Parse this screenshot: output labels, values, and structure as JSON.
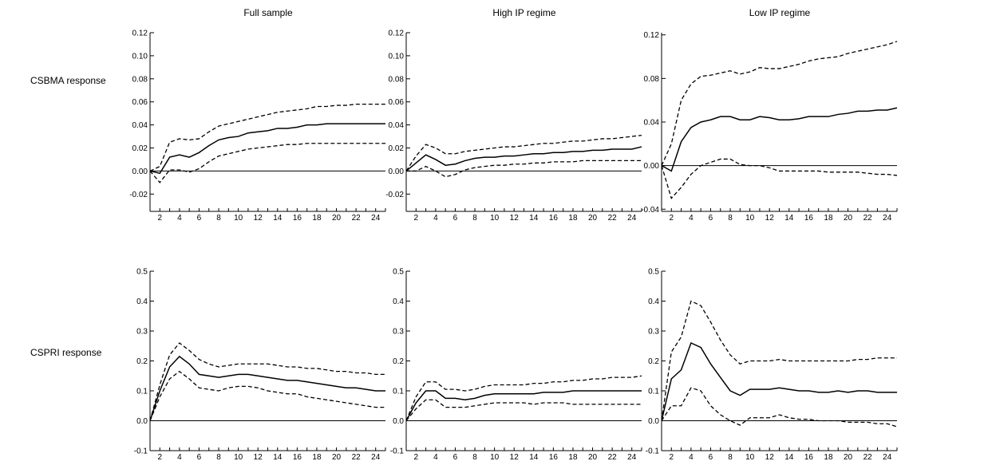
{
  "figure": {
    "column_titles": [
      "Full sample",
      "High IP regime",
      "Low IP regime"
    ],
    "row_labels": [
      "CSBMA response",
      "CSPRI response"
    ]
  },
  "chart_data": [
    {
      "type": "line",
      "row": 0,
      "col": 0,
      "xlim": [
        1,
        25
      ],
      "ylim": [
        -0.035,
        0.12
      ],
      "yticks": [
        -0.02,
        0.0,
        0.02,
        0.04,
        0.06,
        0.08,
        0.1,
        0.12
      ],
      "ytick_labels": [
        "-0.02",
        "0.00",
        "0.02",
        "0.04",
        "0.06",
        "0.08",
        "0.10",
        "0.12"
      ],
      "xticks": [
        2,
        4,
        6,
        8,
        10,
        12,
        14,
        16,
        18,
        20,
        22,
        24
      ],
      "xtick_labels": [
        "2",
        "4",
        "6",
        "8",
        "10",
        "12",
        "14",
        "16",
        "18",
        "20",
        "22",
        "24"
      ],
      "zero_line": true,
      "x": [
        1,
        2,
        3,
        4,
        5,
        6,
        7,
        8,
        9,
        10,
        11,
        12,
        13,
        14,
        15,
        16,
        17,
        18,
        19,
        20,
        21,
        22,
        23,
        24,
        25
      ],
      "series": [
        {
          "role": "response",
          "values": [
            0,
            -0.002,
            0.012,
            0.014,
            0.012,
            0.016,
            0.022,
            0.027,
            0.029,
            0.03,
            0.033,
            0.034,
            0.035,
            0.037,
            0.037,
            0.038,
            0.04,
            0.04,
            0.041,
            0.041,
            0.041,
            0.041,
            0.041,
            0.041,
            0.041
          ]
        },
        {
          "role": "upper",
          "values": [
            0,
            0.004,
            0.025,
            0.028,
            0.027,
            0.028,
            0.034,
            0.039,
            0.041,
            0.043,
            0.045,
            0.047,
            0.049,
            0.051,
            0.052,
            0.053,
            0.054,
            0.056,
            0.056,
            0.057,
            0.057,
            0.058,
            0.058,
            0.058,
            0.058
          ]
        },
        {
          "role": "lower",
          "values": [
            0,
            -0.01,
            0.001,
            0.001,
            -0.001,
            0.002,
            0.008,
            0.013,
            0.015,
            0.017,
            0.019,
            0.02,
            0.021,
            0.022,
            0.023,
            0.023,
            0.024,
            0.024,
            0.024,
            0.024,
            0.024,
            0.024,
            0.024,
            0.024,
            0.024
          ]
        }
      ]
    },
    {
      "type": "line",
      "row": 0,
      "col": 1,
      "xlim": [
        1,
        25
      ],
      "ylim": [
        -0.035,
        0.12
      ],
      "yticks": [
        -0.02,
        0.0,
        0.02,
        0.04,
        0.06,
        0.08,
        0.1,
        0.12
      ],
      "ytick_labels": [
        "-0.02",
        "0.00",
        "0.02",
        "0.04",
        "0.06",
        "0.08",
        "0.10",
        "0.12"
      ],
      "xticks": [
        2,
        4,
        6,
        8,
        10,
        12,
        14,
        16,
        18,
        20,
        22,
        24
      ],
      "xtick_labels": [
        "2",
        "4",
        "6",
        "8",
        "10",
        "12",
        "14",
        "16",
        "18",
        "20",
        "22",
        "24"
      ],
      "zero_line": true,
      "x": [
        1,
        2,
        3,
        4,
        5,
        6,
        7,
        8,
        9,
        10,
        11,
        12,
        13,
        14,
        15,
        16,
        17,
        18,
        19,
        20,
        21,
        22,
        23,
        24,
        25
      ],
      "series": [
        {
          "role": "response",
          "values": [
            0,
            0.007,
            0.014,
            0.01,
            0.005,
            0.006,
            0.009,
            0.011,
            0.012,
            0.012,
            0.013,
            0.013,
            0.014,
            0.015,
            0.015,
            0.016,
            0.016,
            0.017,
            0.017,
            0.018,
            0.018,
            0.019,
            0.019,
            0.019,
            0.021
          ]
        },
        {
          "role": "upper",
          "values": [
            0,
            0.013,
            0.023,
            0.02,
            0.015,
            0.015,
            0.017,
            0.018,
            0.019,
            0.02,
            0.021,
            0.021,
            0.022,
            0.023,
            0.024,
            0.024,
            0.025,
            0.026,
            0.026,
            0.027,
            0.028,
            0.028,
            0.029,
            0.03,
            0.031
          ]
        },
        {
          "role": "lower",
          "values": [
            0,
            0.0,
            0.004,
            0.0,
            -0.005,
            -0.003,
            0.001,
            0.003,
            0.004,
            0.005,
            0.005,
            0.006,
            0.006,
            0.007,
            0.007,
            0.008,
            0.008,
            0.008,
            0.009,
            0.009,
            0.009,
            0.009,
            0.009,
            0.009,
            0.009
          ]
        }
      ]
    },
    {
      "type": "line",
      "row": 0,
      "col": 2,
      "xlim": [
        1,
        25
      ],
      "ylim": [
        -0.042,
        0.122
      ],
      "yticks": [
        -0.04,
        0.0,
        0.04,
        0.08,
        0.12
      ],
      "ytick_labels": [
        "-0.04",
        "0.00",
        "0.04",
        "0.08",
        "0.12"
      ],
      "xticks": [
        2,
        4,
        6,
        8,
        10,
        12,
        14,
        16,
        18,
        20,
        22,
        24
      ],
      "xtick_labels": [
        "2",
        "4",
        "6",
        "8",
        "10",
        "12",
        "14",
        "16",
        "18",
        "20",
        "22",
        "24"
      ],
      "zero_line": true,
      "x": [
        1,
        2,
        3,
        4,
        5,
        6,
        7,
        8,
        9,
        10,
        11,
        12,
        13,
        14,
        15,
        16,
        17,
        18,
        19,
        20,
        21,
        22,
        23,
        24,
        25
      ],
      "series": [
        {
          "role": "response",
          "values": [
            0,
            -0.005,
            0.022,
            0.035,
            0.04,
            0.042,
            0.045,
            0.045,
            0.042,
            0.042,
            0.045,
            0.044,
            0.042,
            0.042,
            0.043,
            0.045,
            0.045,
            0.045,
            0.047,
            0.048,
            0.05,
            0.05,
            0.051,
            0.051,
            0.053
          ]
        },
        {
          "role": "upper",
          "values": [
            0,
            0.02,
            0.06,
            0.075,
            0.082,
            0.083,
            0.085,
            0.087,
            0.084,
            0.086,
            0.09,
            0.089,
            0.089,
            0.091,
            0.093,
            0.096,
            0.098,
            0.099,
            0.1,
            0.103,
            0.105,
            0.107,
            0.109,
            0.111,
            0.114
          ]
        },
        {
          "role": "lower",
          "values": [
            0,
            -0.03,
            -0.02,
            -0.008,
            0.0,
            0.003,
            0.006,
            0.006,
            0.001,
            0.0,
            0.0,
            -0.002,
            -0.005,
            -0.005,
            -0.005,
            -0.005,
            -0.005,
            -0.006,
            -0.006,
            -0.006,
            -0.006,
            -0.007,
            -0.008,
            -0.008,
            -0.009
          ]
        }
      ]
    },
    {
      "type": "line",
      "row": 1,
      "col": 0,
      "xlim": [
        1,
        25
      ],
      "ylim": [
        -0.1,
        0.5
      ],
      "yticks": [
        -0.1,
        0.0,
        0.1,
        0.2,
        0.3,
        0.4,
        0.5
      ],
      "ytick_labels": [
        "-0.1",
        "0.0",
        "0.1",
        "0.2",
        "0.3",
        "0.4",
        "0.5"
      ],
      "xticks": [
        2,
        4,
        6,
        8,
        10,
        12,
        14,
        16,
        18,
        20,
        22,
        24
      ],
      "xtick_labels": [
        "2",
        "4",
        "6",
        "8",
        "10",
        "12",
        "14",
        "16",
        "18",
        "20",
        "22",
        "24"
      ],
      "zero_line": true,
      "x": [
        1,
        2,
        3,
        4,
        5,
        6,
        7,
        8,
        9,
        10,
        11,
        12,
        13,
        14,
        15,
        16,
        17,
        18,
        19,
        20,
        21,
        22,
        23,
        24,
        25
      ],
      "series": [
        {
          "role": "response",
          "values": [
            0,
            0.1,
            0.18,
            0.215,
            0.19,
            0.155,
            0.15,
            0.145,
            0.15,
            0.155,
            0.155,
            0.15,
            0.145,
            0.14,
            0.135,
            0.135,
            0.13,
            0.125,
            0.12,
            0.115,
            0.11,
            0.11,
            0.105,
            0.1,
            0.1
          ]
        },
        {
          "role": "upper",
          "values": [
            0,
            0.12,
            0.22,
            0.26,
            0.235,
            0.205,
            0.19,
            0.18,
            0.185,
            0.19,
            0.19,
            0.19,
            0.19,
            0.185,
            0.18,
            0.18,
            0.175,
            0.175,
            0.17,
            0.165,
            0.165,
            0.16,
            0.16,
            0.155,
            0.155
          ]
        },
        {
          "role": "lower",
          "values": [
            0,
            0.08,
            0.14,
            0.165,
            0.14,
            0.11,
            0.105,
            0.1,
            0.11,
            0.115,
            0.115,
            0.11,
            0.1,
            0.095,
            0.09,
            0.09,
            0.08,
            0.075,
            0.07,
            0.065,
            0.06,
            0.055,
            0.05,
            0.045,
            0.045
          ]
        }
      ]
    },
    {
      "type": "line",
      "row": 1,
      "col": 1,
      "xlim": [
        1,
        25
      ],
      "ylim": [
        -0.1,
        0.5
      ],
      "yticks": [
        -0.1,
        0.0,
        0.1,
        0.2,
        0.3,
        0.4,
        0.5
      ],
      "ytick_labels": [
        "-0.1",
        "0.0",
        "0.1",
        "0.2",
        "0.3",
        "0.4",
        "0.5"
      ],
      "xticks": [
        2,
        4,
        6,
        8,
        10,
        12,
        14,
        16,
        18,
        20,
        22,
        24
      ],
      "xtick_labels": [
        "2",
        "4",
        "6",
        "8",
        "10",
        "12",
        "14",
        "16",
        "18",
        "20",
        "22",
        "24"
      ],
      "zero_line": true,
      "x": [
        1,
        2,
        3,
        4,
        5,
        6,
        7,
        8,
        9,
        10,
        11,
        12,
        13,
        14,
        15,
        16,
        17,
        18,
        19,
        20,
        21,
        22,
        23,
        24,
        25
      ],
      "series": [
        {
          "role": "response",
          "values": [
            0,
            0.06,
            0.1,
            0.1,
            0.075,
            0.075,
            0.07,
            0.075,
            0.085,
            0.09,
            0.09,
            0.09,
            0.09,
            0.09,
            0.095,
            0.095,
            0.095,
            0.1,
            0.1,
            0.1,
            0.1,
            0.1,
            0.1,
            0.1,
            0.1
          ]
        },
        {
          "role": "upper",
          "values": [
            0,
            0.08,
            0.13,
            0.13,
            0.105,
            0.105,
            0.1,
            0.105,
            0.115,
            0.12,
            0.12,
            0.12,
            0.12,
            0.125,
            0.125,
            0.13,
            0.13,
            0.135,
            0.135,
            0.14,
            0.14,
            0.145,
            0.145,
            0.145,
            0.15
          ]
        },
        {
          "role": "lower",
          "values": [
            0,
            0.04,
            0.07,
            0.07,
            0.045,
            0.045,
            0.045,
            0.05,
            0.055,
            0.06,
            0.06,
            0.06,
            0.06,
            0.055,
            0.06,
            0.06,
            0.06,
            0.055,
            0.055,
            0.055,
            0.055,
            0.055,
            0.055,
            0.055,
            0.055
          ]
        }
      ]
    },
    {
      "type": "line",
      "row": 1,
      "col": 2,
      "xlim": [
        1,
        25
      ],
      "ylim": [
        -0.1,
        0.5
      ],
      "yticks": [
        -0.1,
        0.0,
        0.1,
        0.2,
        0.3,
        0.4,
        0.5
      ],
      "ytick_labels": [
        "-0.1",
        "0.0",
        "0.1",
        "0.2",
        "0.3",
        "0.4",
        "0.5"
      ],
      "xticks": [
        2,
        4,
        6,
        8,
        10,
        12,
        14,
        16,
        18,
        20,
        22,
        24
      ],
      "xtick_labels": [
        "2",
        "4",
        "6",
        "8",
        "10",
        "12",
        "14",
        "16",
        "18",
        "20",
        "22",
        "24"
      ],
      "zero_line": true,
      "x": [
        1,
        2,
        3,
        4,
        5,
        6,
        7,
        8,
        9,
        10,
        11,
        12,
        13,
        14,
        15,
        16,
        17,
        18,
        19,
        20,
        21,
        22,
        23,
        24,
        25
      ],
      "series": [
        {
          "role": "response",
          "values": [
            0,
            0.14,
            0.17,
            0.26,
            0.245,
            0.19,
            0.145,
            0.1,
            0.085,
            0.105,
            0.105,
            0.105,
            0.11,
            0.105,
            0.1,
            0.1,
            0.095,
            0.095,
            0.1,
            0.095,
            0.1,
            0.1,
            0.095,
            0.095,
            0.095
          ]
        },
        {
          "role": "upper",
          "values": [
            0,
            0.23,
            0.28,
            0.4,
            0.385,
            0.33,
            0.27,
            0.22,
            0.19,
            0.2,
            0.2,
            0.2,
            0.205,
            0.2,
            0.2,
            0.2,
            0.2,
            0.2,
            0.2,
            0.2,
            0.205,
            0.205,
            0.21,
            0.21,
            0.21
          ]
        },
        {
          "role": "lower",
          "values": [
            0,
            0.05,
            0.05,
            0.11,
            0.1,
            0.05,
            0.02,
            0.0,
            -0.015,
            0.01,
            0.01,
            0.01,
            0.02,
            0.01,
            0.005,
            0.005,
            0.0,
            0.0,
            0.0,
            -0.005,
            -0.005,
            -0.005,
            -0.01,
            -0.01,
            -0.02
          ]
        }
      ]
    }
  ]
}
